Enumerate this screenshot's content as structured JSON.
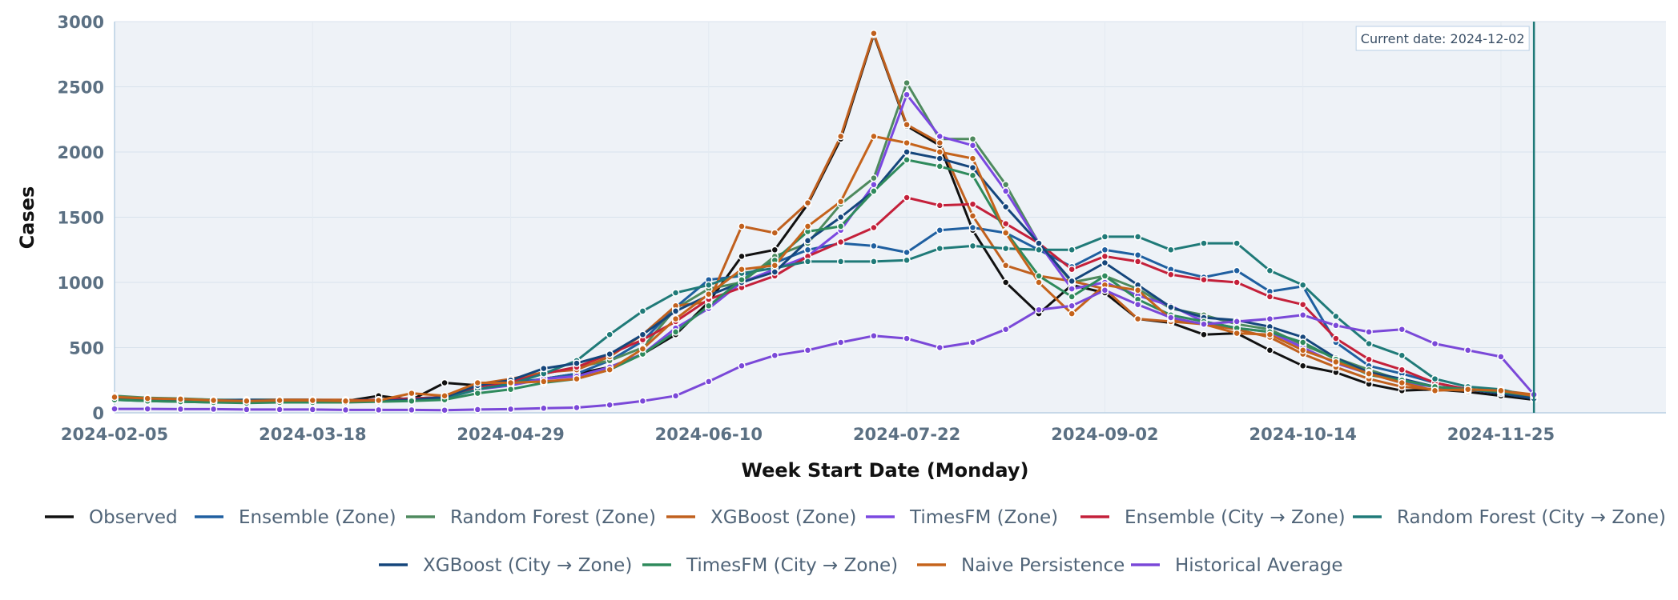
{
  "chart_data": {
    "type": "line",
    "title": "",
    "xlabel": "Week Start Date (Monday)",
    "ylabel": "Cases",
    "ylim": [
      0,
      3000
    ],
    "yticks": [
      0,
      500,
      1000,
      1500,
      2000,
      2500,
      3000
    ],
    "yticklabels": [
      "0",
      "500",
      "1000",
      "1500",
      "2000",
      "2500",
      "3000"
    ],
    "xticks": [
      "2024-02-05",
      "2024-03-18",
      "2024-04-29",
      "2024-06-10",
      "2024-07-22",
      "2024-09-02",
      "2024-10-14",
      "2024-11-25"
    ],
    "xlim": [
      "2024-02-05",
      "2024-12-30"
    ],
    "grid": true,
    "legend": "bottom",
    "x": [
      "2024-02-05",
      "2024-02-12",
      "2024-02-19",
      "2024-02-26",
      "2024-03-04",
      "2024-03-11",
      "2024-03-18",
      "2024-03-25",
      "2024-04-01",
      "2024-04-08",
      "2024-04-15",
      "2024-04-22",
      "2024-04-29",
      "2024-05-06",
      "2024-05-13",
      "2024-05-20",
      "2024-05-27",
      "2024-06-03",
      "2024-06-10",
      "2024-06-17",
      "2024-06-24",
      "2024-07-01",
      "2024-07-08",
      "2024-07-15",
      "2024-07-22",
      "2024-07-29",
      "2024-08-05",
      "2024-08-12",
      "2024-08-19",
      "2024-08-26",
      "2024-09-02",
      "2024-09-09",
      "2024-09-16",
      "2024-09-23",
      "2024-09-30",
      "2024-10-07",
      "2024-10-14",
      "2024-10-21",
      "2024-10-28",
      "2024-11-04",
      "2024-11-11",
      "2024-11-18",
      "2024-11-25",
      "2024-12-02"
    ],
    "annotation": {
      "text": "Current date: 2024-12-02",
      "x": "2024-12-02"
    },
    "series": [
      {
        "name": "Observed",
        "color": "#111111",
        "values": [
          115,
          105,
          100,
          95,
          100,
          100,
          100,
          90,
          130,
          100,
          230,
          210,
          220,
          260,
          300,
          350,
          450,
          600,
          850,
          1200,
          1250,
          1600,
          2100,
          2900,
          2200,
          2050,
          1400,
          1000,
          760,
          980,
          920,
          720,
          690,
          600,
          610,
          480,
          360,
          310,
          220,
          170,
          180,
          160,
          130,
          100
        ]
      },
      {
        "name": "Ensemble (Zone)",
        "color": "#1f5fa0",
        "values": [
          120,
          110,
          105,
          100,
          100,
          100,
          100,
          95,
          100,
          110,
          120,
          200,
          230,
          260,
          300,
          400,
          550,
          810,
          1020,
          1050,
          1150,
          1250,
          1300,
          1280,
          1230,
          1400,
          1420,
          1380,
          1250,
          1120,
          1250,
          1210,
          1100,
          1040,
          1090,
          930,
          970,
          540,
          360,
          300,
          230,
          180,
          150,
          110
        ]
      },
      {
        "name": "Random Forest (Zone)",
        "color": "#4e8a5e",
        "values": [
          130,
          115,
          110,
          100,
          95,
          100,
          95,
          90,
          100,
          110,
          120,
          200,
          240,
          300,
          350,
          400,
          500,
          800,
          950,
          1000,
          1200,
          1300,
          1600,
          1800,
          2530,
          2100,
          2100,
          1750,
          1300,
          1000,
          1050,
          950,
          800,
          750,
          680,
          640,
          520,
          420,
          330,
          250,
          200,
          180,
          160,
          120
        ]
      },
      {
        "name": "XGBoost (Zone)",
        "color": "#c0601e",
        "values": [
          120,
          110,
          100,
          90,
          90,
          100,
          100,
          100,
          90,
          100,
          110,
          220,
          260,
          310,
          330,
          430,
          600,
          820,
          850,
          1430,
          1380,
          1610,
          2120,
          2910,
          2210,
          2070,
          1510,
          1130,
          1050,
          1010,
          950,
          720,
          700,
          680,
          640,
          580,
          450,
          350,
          260,
          200,
          180,
          170,
          170,
          140
        ]
      },
      {
        "name": "TimesFM (Zone)",
        "color": "#7b48e0",
        "values": [
          110,
          100,
          95,
          90,
          85,
          90,
          90,
          90,
          95,
          100,
          110,
          180,
          210,
          260,
          280,
          350,
          450,
          650,
          800,
          1000,
          1100,
          1200,
          1400,
          1750,
          2440,
          2120,
          2050,
          1700,
          1300,
          950,
          1000,
          900,
          820,
          700,
          650,
          620,
          500,
          380,
          300,
          230,
          200,
          180,
          150,
          120
        ]
      },
      {
        "name": "Ensemble (City → Zone)",
        "color": "#c4203a",
        "values": [
          110,
          100,
          95,
          90,
          90,
          95,
          95,
          90,
          100,
          110,
          120,
          200,
          240,
          300,
          350,
          450,
          560,
          700,
          870,
          960,
          1050,
          1200,
          1310,
          1420,
          1650,
          1590,
          1600,
          1450,
          1300,
          1100,
          1200,
          1160,
          1060,
          1020,
          1000,
          890,
          830,
          570,
          410,
          330,
          230,
          180,
          160,
          120
        ]
      },
      {
        "name": "Random Forest (City → Zone)",
        "color": "#1f7a78",
        "values": [
          100,
          90,
          85,
          80,
          80,
          85,
          85,
          85,
          90,
          100,
          110,
          180,
          220,
          300,
          400,
          600,
          780,
          920,
          980,
          1070,
          1110,
          1160,
          1160,
          1160,
          1170,
          1260,
          1280,
          1260,
          1250,
          1250,
          1350,
          1350,
          1250,
          1300,
          1300,
          1090,
          980,
          740,
          530,
          440,
          260,
          200,
          180,
          120
        ]
      },
      {
        "name": "XGBoost (City → Zone)",
        "color": "#15467c",
        "values": [
          110,
          100,
          100,
          95,
          95,
          95,
          95,
          90,
          90,
          100,
          120,
          210,
          250,
          340,
          380,
          450,
          600,
          780,
          900,
          1000,
          1080,
          1320,
          1500,
          1700,
          2000,
          1950,
          1880,
          1580,
          1300,
          1010,
          1150,
          980,
          810,
          730,
          710,
          660,
          580,
          420,
          310,
          260,
          200,
          180,
          150,
          110
        ]
      },
      {
        "name": "TimesFM (City → Zone)",
        "color": "#2e8a5c",
        "values": [
          100,
          90,
          85,
          80,
          75,
          80,
          80,
          80,
          85,
          90,
          100,
          150,
          180,
          230,
          260,
          330,
          450,
          620,
          820,
          1020,
          1170,
          1390,
          1430,
          1700,
          1940,
          1890,
          1820,
          1390,
          1050,
          890,
          1050,
          870,
          750,
          700,
          650,
          620,
          540,
          410,
          290,
          250,
          200,
          180,
          160,
          130
        ]
      },
      {
        "name": "Naive Persistence",
        "color": "#c5631b",
        "values": [
          120,
          110,
          105,
          95,
          90,
          95,
          95,
          90,
          95,
          150,
          130,
          230,
          230,
          240,
          260,
          330,
          490,
          720,
          910,
          1100,
          1130,
          1430,
          1620,
          2120,
          2070,
          2000,
          1950,
          1380,
          1000,
          760,
          980,
          940,
          720,
          680,
          610,
          600,
          480,
          390,
          300,
          230,
          170,
          180,
          170,
          130
        ]
      },
      {
        "name": "Historical Average",
        "color": "#7a48d8",
        "values": [
          30,
          30,
          28,
          28,
          25,
          25,
          25,
          22,
          22,
          22,
          20,
          25,
          28,
          35,
          40,
          60,
          90,
          130,
          240,
          360,
          440,
          480,
          540,
          590,
          570,
          500,
          540,
          640,
          790,
          820,
          940,
          830,
          730,
          680,
          700,
          720,
          750,
          670,
          620,
          640,
          530,
          480,
          430,
          140
        ]
      }
    ]
  }
}
